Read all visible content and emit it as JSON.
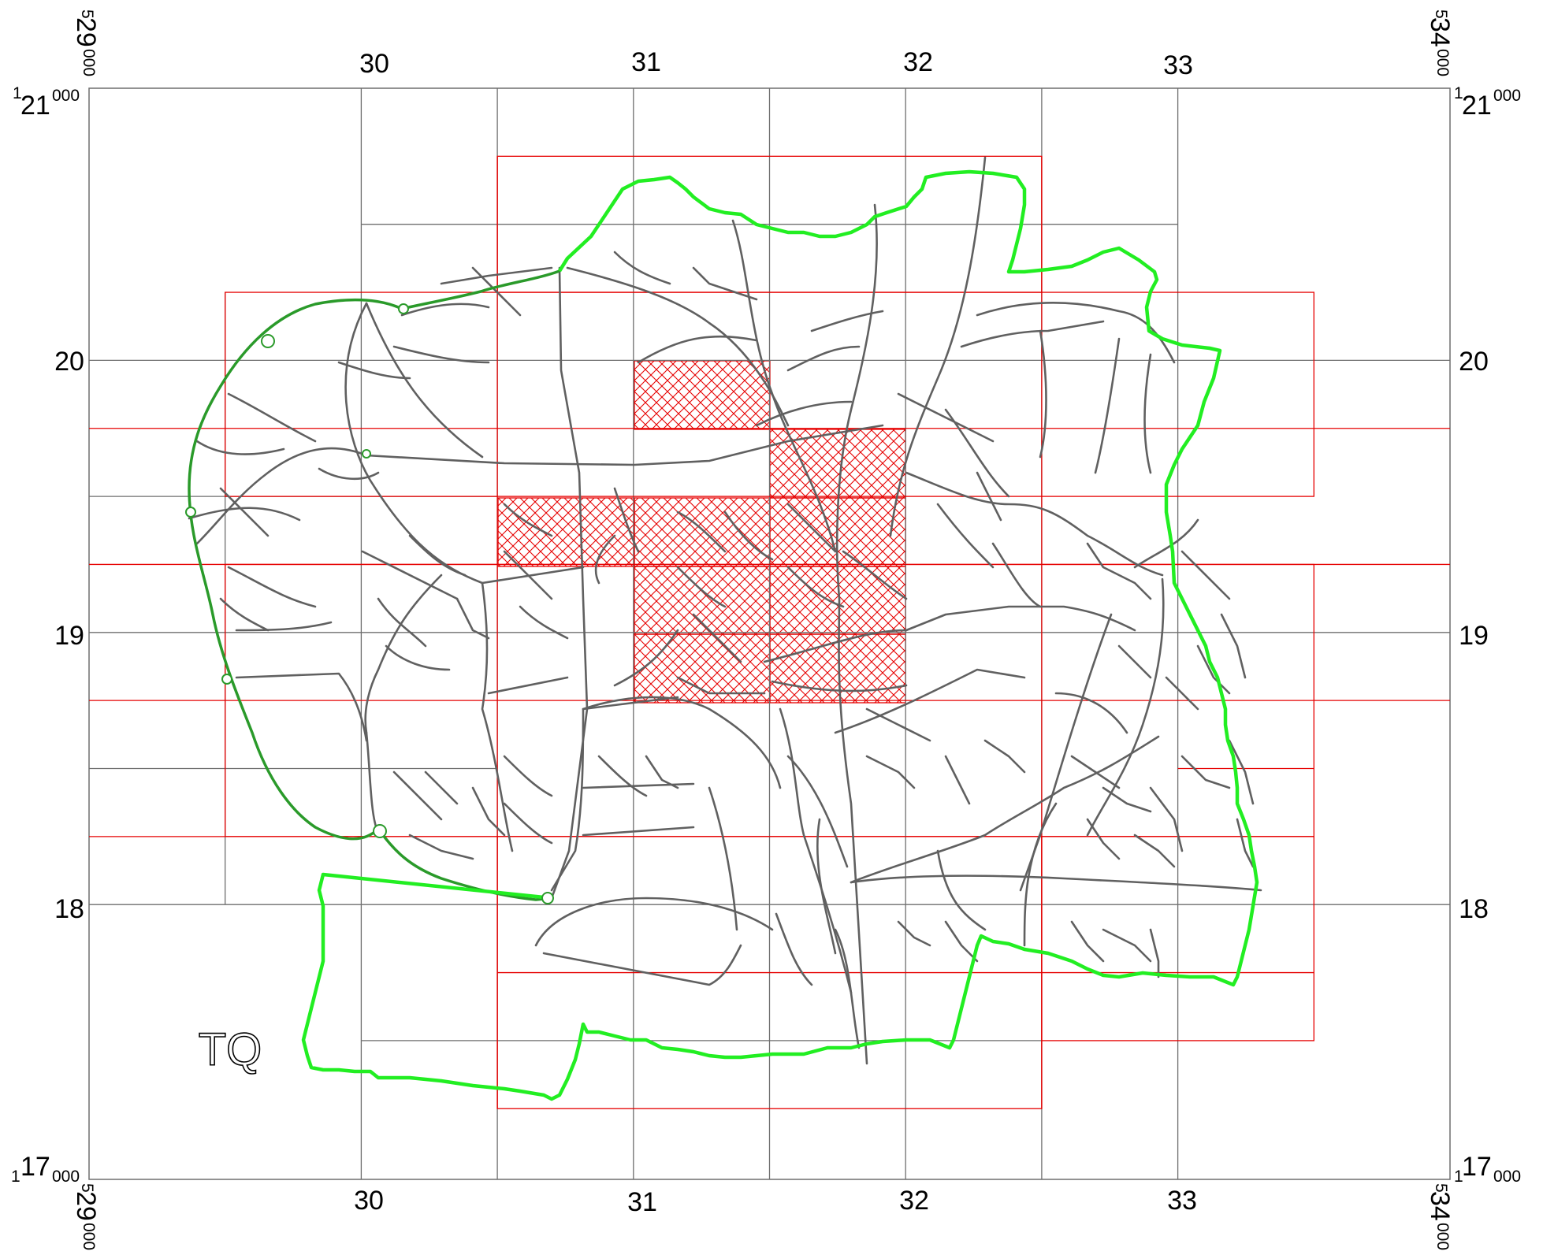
{
  "map": {
    "grid_square": "TQ",
    "easting_ticks": [
      "30",
      "31",
      "32",
      "33"
    ],
    "northing_ticks": [
      "20",
      "19",
      "18"
    ],
    "corner_easting_left": {
      "prefix": "5",
      "main": "29",
      "suffix": "000"
    },
    "corner_easting_right": {
      "prefix": "5",
      "main": "34",
      "suffix": "000"
    },
    "corner_northing_top": {
      "prefix": "1",
      "main": "21",
      "suffix": "000"
    },
    "corner_northing_bottom": {
      "prefix": "1",
      "main": "17",
      "suffix": "000"
    },
    "colors": {
      "grid": "#6e6e6e",
      "tile_outline": "#e60000",
      "hatch": "#e60000",
      "boundary": "#22ee22",
      "boundary_dark": "#2a9a2a",
      "roads": "#606060"
    }
  }
}
